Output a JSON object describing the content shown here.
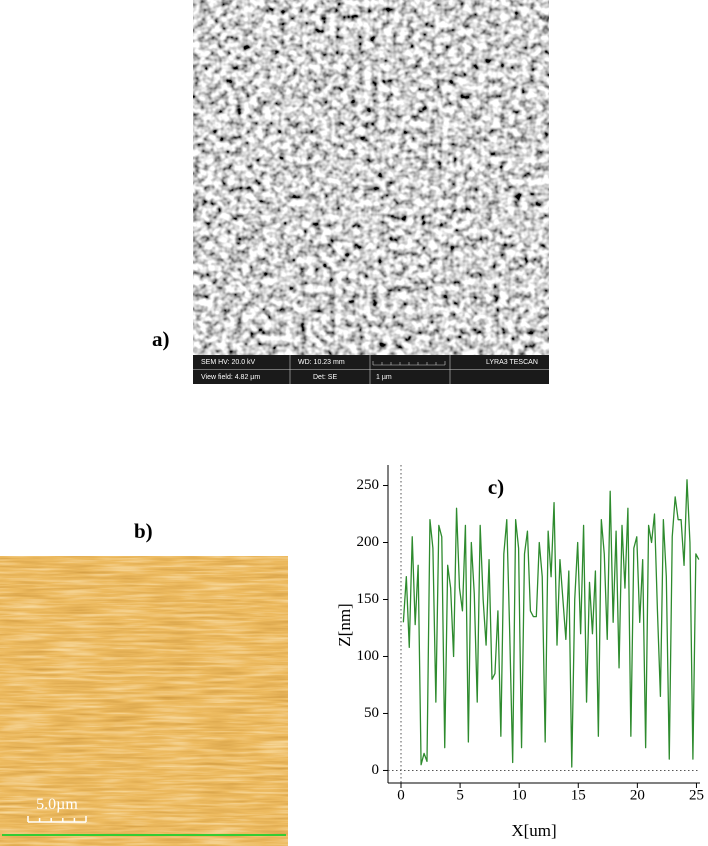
{
  "panel_a": {
    "label": "a)",
    "info": [
      "SEM HV: 20.0 kV",
      "WD: 10.23 mm",
      "LYRA3 TESCAN",
      "View field: 4.82 µm",
      "Det: SE",
      "1 µm"
    ]
  },
  "panel_b": {
    "label": "b)",
    "scale_bar": "5.0µm"
  },
  "chart_data": {
    "type": "line",
    "annotation": "c)",
    "x_label": "X[um]",
    "y_label": "Z[nm]",
    "color": "#2e8b2e",
    "x": [
      0.2,
      0.45,
      0.7,
      0.95,
      1.2,
      1.45,
      1.7,
      1.95,
      2.2,
      2.45,
      2.7,
      2.95,
      3.2,
      3.45,
      3.7,
      3.95,
      4.2,
      4.45,
      4.7,
      4.95,
      5.2,
      5.45,
      5.7,
      5.95,
      6.2,
      6.45,
      6.7,
      6.95,
      7.2,
      7.45,
      7.7,
      7.95,
      8.2,
      8.45,
      8.7,
      8.95,
      9.2,
      9.45,
      9.7,
      9.95,
      10.2,
      10.45,
      10.7,
      10.95,
      11.2,
      11.45,
      11.7,
      11.95,
      12.2,
      12.45,
      12.7,
      12.95,
      13.2,
      13.45,
      13.7,
      13.95,
      14.2,
      14.45,
      14.7,
      14.95,
      15.2,
      15.45,
      15.7,
      15.95,
      16.2,
      16.45,
      16.7,
      16.95,
      17.2,
      17.45,
      17.7,
      17.95,
      18.2,
      18.45,
      18.7,
      18.95,
      19.2,
      19.45,
      19.7,
      19.95,
      20.2,
      20.45,
      20.7,
      20.95,
      21.2,
      21.45,
      21.7,
      21.95,
      22.2,
      22.45,
      22.7,
      22.95,
      23.2,
      23.45,
      23.7,
      23.95,
      24.2,
      24.45,
      24.7,
      24.95,
      25.2
    ],
    "values": [
      130,
      170,
      108,
      205,
      128,
      180,
      5,
      15,
      8,
      220,
      195,
      60,
      215,
      205,
      20,
      180,
      160,
      100,
      230,
      160,
      140,
      215,
      25,
      200,
      155,
      60,
      215,
      150,
      110,
      185,
      80,
      85,
      140,
      30,
      190,
      220,
      120,
      7,
      220,
      195,
      20,
      190,
      210,
      140,
      135,
      135,
      200,
      170,
      25,
      210,
      170,
      235,
      110,
      185,
      150,
      115,
      175,
      3,
      150,
      200,
      120,
      215,
      60,
      165,
      120,
      175,
      30,
      220,
      190,
      115,
      245,
      130,
      210,
      90,
      215,
      160,
      230,
      30,
      195,
      205,
      130,
      185,
      20,
      215,
      200,
      225,
      140,
      65,
      220,
      170,
      10,
      205,
      240,
      220,
      220,
      180,
      255,
      200,
      10,
      190,
      185
    ],
    "xlim": [
      -1.1,
      25.3
    ],
    "ylim": [
      -11,
      268
    ],
    "xticks": [
      0,
      5,
      10,
      15,
      20,
      25
    ],
    "yticks": [
      0,
      50,
      100,
      150,
      200,
      250
    ],
    "zero_lines": true
  }
}
